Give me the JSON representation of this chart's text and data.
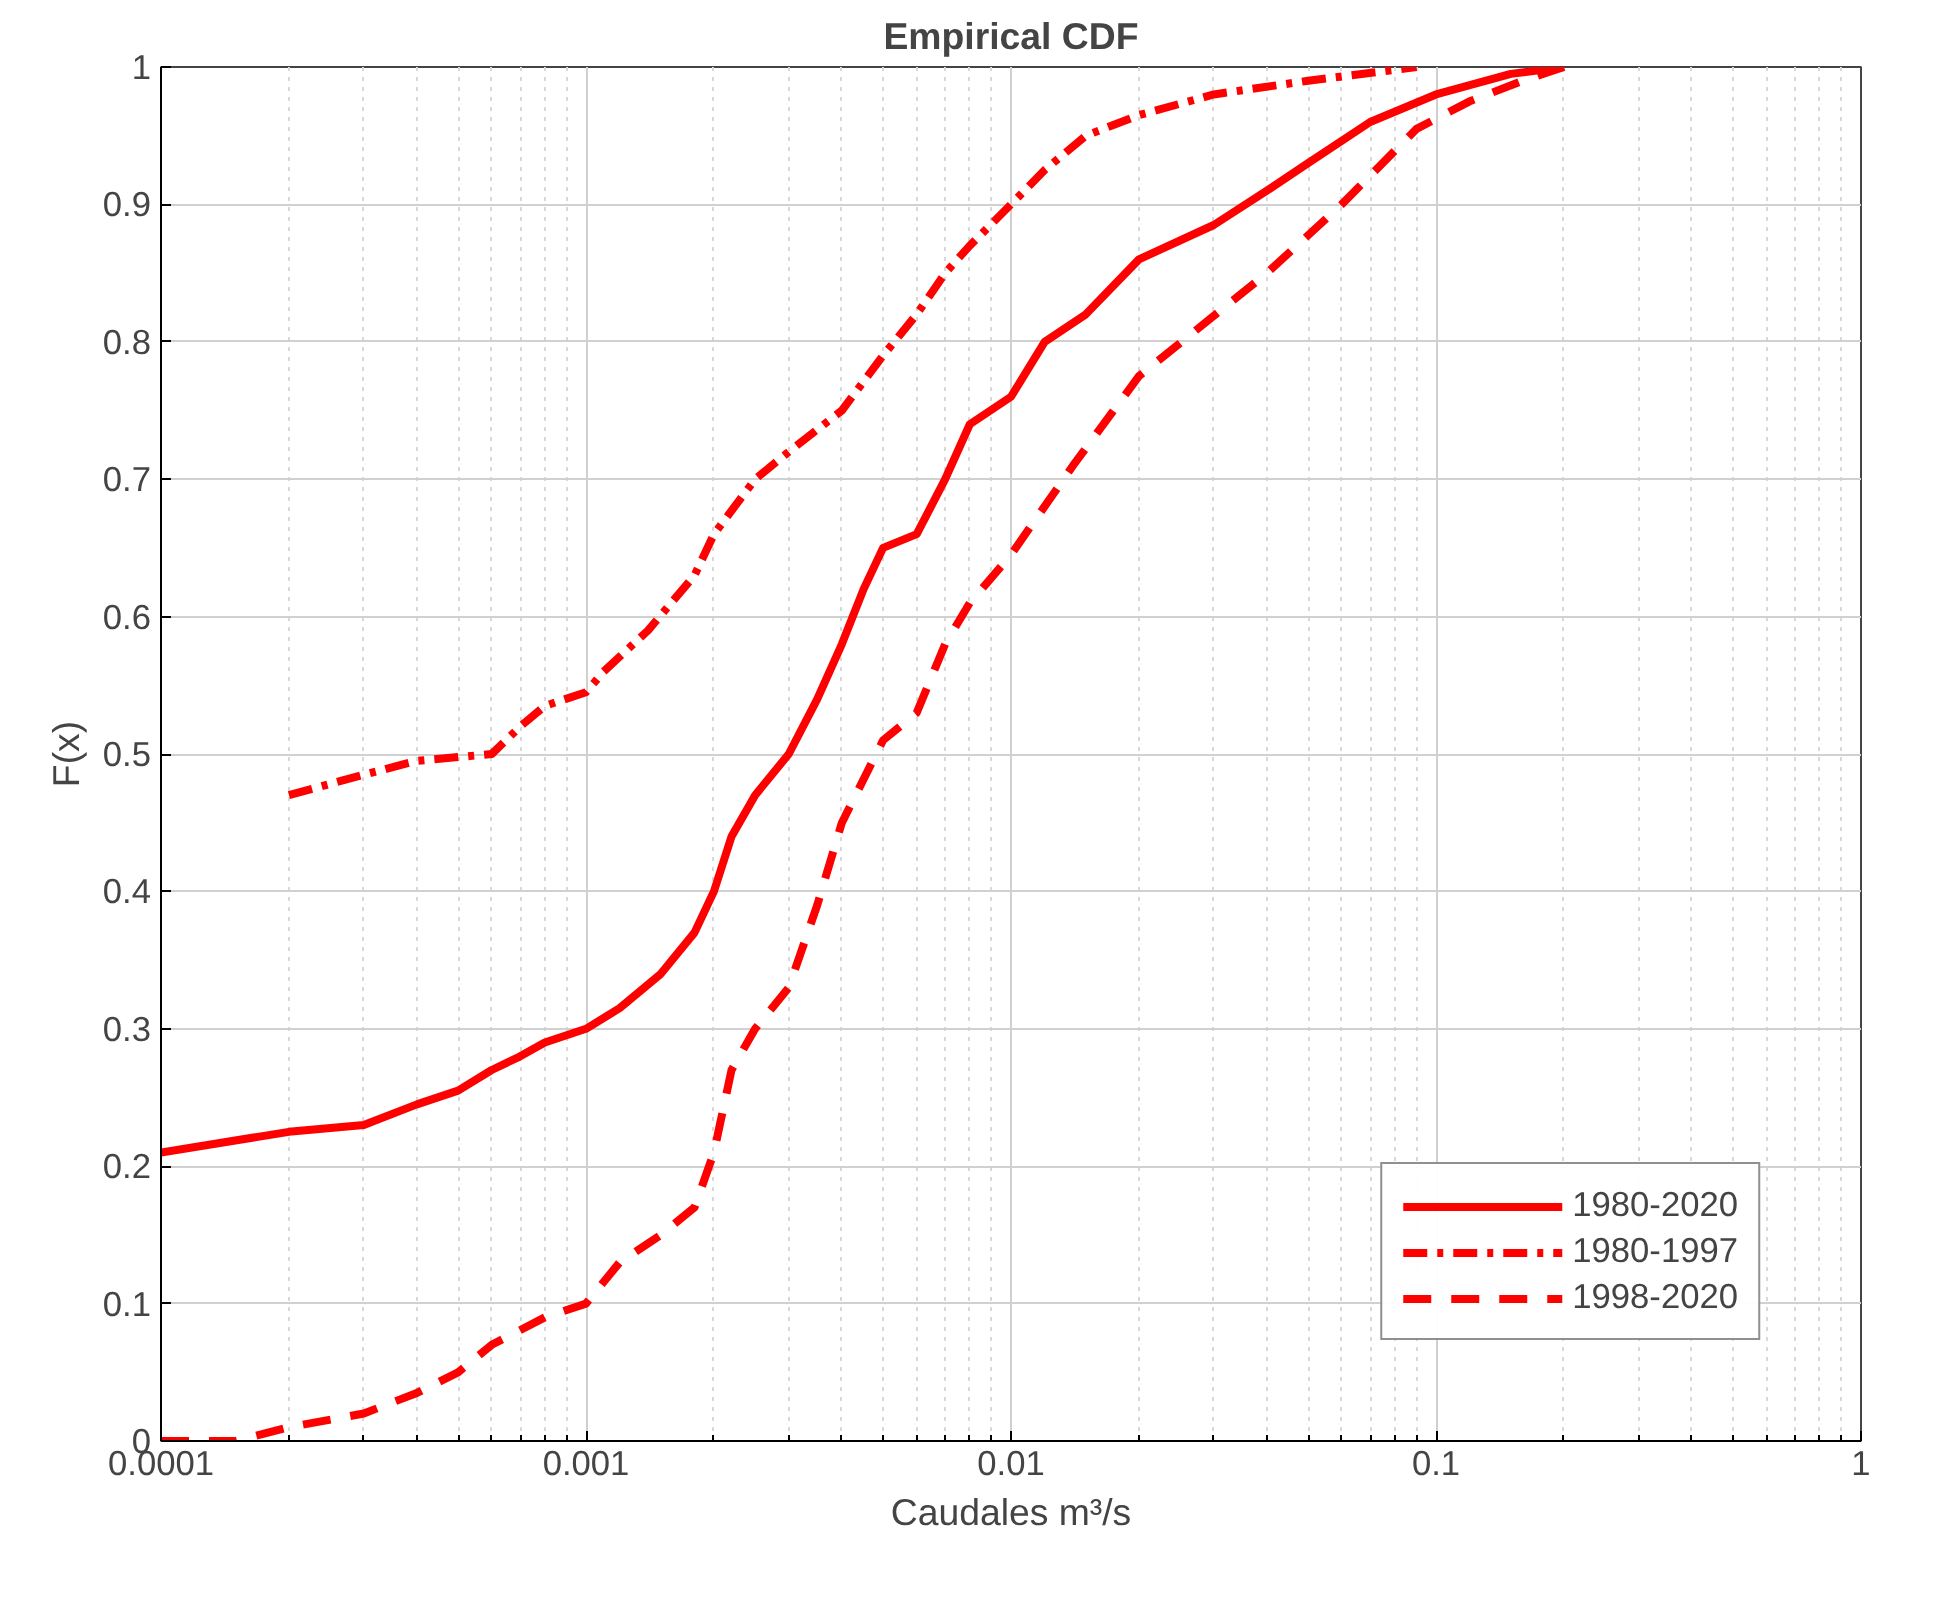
{
  "chart_data": {
    "type": "line",
    "title": "Empirical CDF",
    "xlabel": "Caudales m³/s",
    "ylabel": "F(x)",
    "log": "x",
    "grid": true,
    "legend": "bottom right",
    "xlim": [
      0.0001,
      1
    ],
    "xticks": [
      0.0001,
      0.001,
      0.01,
      0.1,
      1
    ],
    "ylim": [
      0,
      1
    ],
    "yticks": [
      0,
      0.1,
      0.2,
      0.3,
      0.4,
      0.5,
      0.6,
      0.7,
      0.8,
      0.9,
      1
    ],
    "series": [
      {
        "name": "1980-2020",
        "color": "#ff0000",
        "line_style": "solid",
        "x": [
          0.0001,
          0.0002,
          0.0003,
          0.0004,
          0.0005,
          0.0006,
          0.0007,
          0.0008,
          0.001,
          0.0012,
          0.0015,
          0.0018,
          0.002,
          0.0022,
          0.0025,
          0.003,
          0.0035,
          0.004,
          0.0045,
          0.005,
          0.006,
          0.007,
          0.008,
          0.01,
          0.012,
          0.015,
          0.02,
          0.03,
          0.04,
          0.05,
          0.07,
          0.1,
          0.15,
          0.2
        ],
        "values": [
          0.21,
          0.225,
          0.23,
          0.245,
          0.255,
          0.27,
          0.28,
          0.29,
          0.3,
          0.315,
          0.34,
          0.37,
          0.4,
          0.44,
          0.47,
          0.5,
          0.54,
          0.58,
          0.62,
          0.65,
          0.66,
          0.7,
          0.74,
          0.76,
          0.8,
          0.82,
          0.86,
          0.885,
          0.91,
          0.93,
          0.96,
          0.98,
          0.995,
          1.0
        ]
      },
      {
        "name": "1980-1997",
        "color": "#ff0000",
        "line_style": "dashdot",
        "x": [
          0.0002,
          0.0003,
          0.0004,
          0.0006,
          0.0007,
          0.0008,
          0.001,
          0.0011,
          0.0014,
          0.0018,
          0.002,
          0.0025,
          0.003,
          0.004,
          0.005,
          0.006,
          0.007,
          0.008,
          0.01,
          0.012,
          0.015,
          0.02,
          0.03,
          0.05,
          0.09
        ],
        "values": [
          0.47,
          0.485,
          0.495,
          0.5,
          0.52,
          0.535,
          0.545,
          0.56,
          0.59,
          0.63,
          0.66,
          0.7,
          0.72,
          0.75,
          0.79,
          0.82,
          0.85,
          0.87,
          0.9,
          0.925,
          0.95,
          0.965,
          0.98,
          0.99,
          1.0
        ]
      },
      {
        "name": "1998-2020",
        "color": "#ff0000",
        "line_style": "dashed",
        "x": [
          0.0001,
          0.00015,
          0.0002,
          0.0003,
          0.0004,
          0.0005,
          0.0006,
          0.0008,
          0.001,
          0.0012,
          0.0015,
          0.0018,
          0.002,
          0.0022,
          0.0025,
          0.003,
          0.0035,
          0.004,
          0.005,
          0.006,
          0.007,
          0.008,
          0.01,
          0.014,
          0.02,
          0.04,
          0.06,
          0.09,
          0.12,
          0.16,
          0.2
        ],
        "values": [
          0.0,
          0.0,
          0.01,
          0.02,
          0.035,
          0.05,
          0.07,
          0.09,
          0.1,
          0.13,
          0.15,
          0.17,
          0.21,
          0.27,
          0.3,
          0.33,
          0.39,
          0.45,
          0.51,
          0.53,
          0.58,
          0.61,
          0.645,
          0.71,
          0.775,
          0.85,
          0.9,
          0.955,
          0.975,
          0.99,
          1.0
        ]
      }
    ]
  }
}
